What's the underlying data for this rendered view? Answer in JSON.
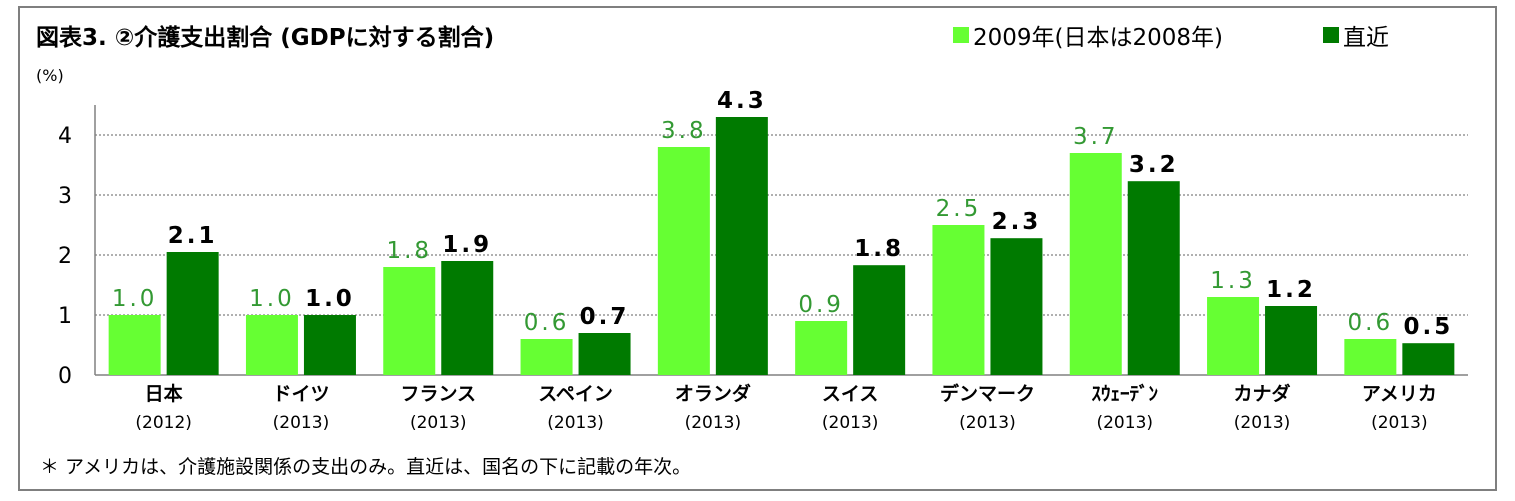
{
  "chart_data": {
    "type": "bar",
    "title": "図表3. ②介護支出割合 (GDPに対する割合)",
    "unit_label": "(%)",
    "ylim": [
      0,
      4.5
    ],
    "yticks": [
      "0",
      "1",
      "2",
      "3",
      "4"
    ],
    "grid": true,
    "legend_position": "top-right",
    "categories": [
      "日本",
      "ドイツ",
      "フランス",
      "スペイン",
      "オランダ",
      "スイス",
      "デンマーク",
      "ｽｳｪｰﾃﾞﾝ",
      "カナダ",
      "アメリカ"
    ],
    "category_years": [
      "(2012)",
      "(2013)",
      "(2013)",
      "(2013)",
      "(2013)",
      "(2013)",
      "(2013)",
      "(2013)",
      "(2013)",
      "(2013)"
    ],
    "series": [
      {
        "name": "2009年(日本は2008年)",
        "color": "#66ff33",
        "label_color": "#339933",
        "values": [
          1.0,
          1.0,
          1.8,
          0.6,
          3.8,
          0.9,
          2.5,
          3.7,
          1.3,
          0.6
        ],
        "labels": [
          "1.0",
          "1.0",
          "1.8",
          "0.6",
          "3.8",
          "0.9",
          "2.5",
          "3.7",
          "1.3",
          "0.6"
        ]
      },
      {
        "name": "直近",
        "color": "#007a00",
        "label_color": "#000000",
        "values": [
          2.05,
          1.0,
          1.9,
          0.7,
          4.3,
          1.83,
          2.28,
          3.23,
          1.15,
          0.53
        ],
        "labels": [
          "2.1",
          "1.0",
          "1.9",
          "0.7",
          "4.3",
          "1.8",
          "2.3",
          "3.2",
          "1.2",
          "0.5"
        ]
      }
    ],
    "footnote": "＊ アメリカは、介護施設関係の支出のみ。直近は、国名の下に記載の年次。"
  }
}
